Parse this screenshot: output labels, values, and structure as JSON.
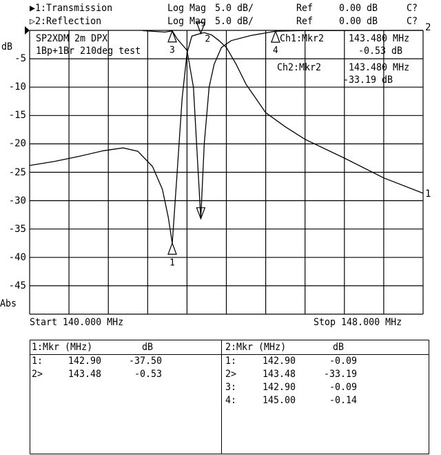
{
  "header": {
    "rows": [
      {
        "channel": "▶1:Transmission",
        "format": "Log Mag",
        "scale": "5.0 dB/",
        "ref_label": "Ref",
        "ref_value": "0.00 dB",
        "cal": "C?"
      },
      {
        "channel": "▷2:Reflection",
        "format": "Log Mag",
        "scale": "5.0 dB/",
        "ref_label": "Ref",
        "ref_value": "0.00 dB",
        "cal": "C?"
      }
    ]
  },
  "annotation": {
    "line1": "SP2XDM 2m DPX",
    "line2": "1Bp+1Br 210deg test"
  },
  "readout": {
    "ch1_label": "Ch1:Mkr2",
    "ch1_freq": "143.480 MHz",
    "ch1_value": "-0.53 dB",
    "ch2_label": "Ch2:Mkr2",
    "ch2_freq": "143.480 MHz",
    "ch2_value": "-33.19 dB"
  },
  "axis": {
    "unit": "dB",
    "bottom_label": "Abs",
    "ticks": [
      "-5",
      "-10",
      "-15",
      "-20",
      "-25",
      "-30",
      "-35",
      "-40",
      "-45"
    ],
    "start": "Start 140.000 MHz",
    "stop": "Stop 148.000 MHz"
  },
  "chart_data": {
    "type": "line",
    "xlim": [
      140,
      148
    ],
    "ylim": [
      -50,
      0
    ],
    "grid": true,
    "xlabel": "",
    "ylabel": "dB",
    "series": [
      {
        "name": "1",
        "color": "#000000",
        "points": [
          [
            140,
            -23.8
          ],
          [
            140.5,
            -23.1
          ],
          [
            141,
            -22.2
          ],
          [
            141.5,
            -21.2
          ],
          [
            141.9,
            -20.7
          ],
          [
            142.2,
            -21.3
          ],
          [
            142.5,
            -24
          ],
          [
            142.7,
            -28
          ],
          [
            142.82,
            -33
          ],
          [
            142.9,
            -37.5
          ],
          [
            143.0,
            -25
          ],
          [
            143.1,
            -12
          ],
          [
            143.2,
            -4
          ],
          [
            143.3,
            -1
          ],
          [
            143.48,
            -0.53
          ],
          [
            143.55,
            -0.4
          ],
          [
            143.7,
            -0.8
          ],
          [
            143.85,
            -1.8
          ],
          [
            144.0,
            -3
          ],
          [
            144.2,
            -6
          ],
          [
            144.4,
            -9.5
          ],
          [
            144.8,
            -14.5
          ],
          [
            145.2,
            -17
          ],
          [
            145.6,
            -19.2
          ],
          [
            146.4,
            -22.5
          ],
          [
            147.2,
            -26
          ],
          [
            148,
            -28.7
          ]
        ]
      },
      {
        "name": "2",
        "color": "#000000",
        "points": [
          [
            142.3,
            -0.05
          ],
          [
            142.75,
            -0.3
          ],
          [
            142.9,
            -0.09
          ],
          [
            143.0,
            -1.5
          ],
          [
            143.2,
            -3.5
          ],
          [
            143.33,
            -10
          ],
          [
            143.48,
            -33.19
          ],
          [
            143.55,
            -20
          ],
          [
            143.65,
            -10
          ],
          [
            143.75,
            -6
          ],
          [
            143.9,
            -3
          ],
          [
            144.1,
            -1.8
          ],
          [
            144.5,
            -0.9
          ],
          [
            145,
            -0.14
          ],
          [
            145.5,
            -0.05
          ],
          [
            148,
            0
          ]
        ]
      }
    ],
    "markers": [
      {
        "label": "1",
        "x": 142.9,
        "y": -37.5,
        "dir": "up"
      },
      {
        "label": "2",
        "x": 143.48,
        "y": -0.53,
        "dir": "down"
      },
      {
        "label": "",
        "x": 143.48,
        "y": -33.19,
        "dir": "down"
      },
      {
        "label": "3",
        "x": 142.9,
        "y": -0.09,
        "dir": "up"
      },
      {
        "label": "4",
        "x": 145.0,
        "y": -0.14,
        "dir": "up"
      }
    ]
  },
  "table": {
    "ch1": {
      "header_mkr": "1:Mkr (MHz)",
      "header_db": "dB",
      "rows": [
        [
          "1:",
          "142.90",
          "-37.50"
        ],
        [
          "2>",
          "143.48",
          "-0.53"
        ]
      ]
    },
    "ch2": {
      "header_mkr": "2:Mkr (MHz)",
      "header_db": "dB",
      "rows": [
        [
          "1:",
          "142.90",
          "-0.09"
        ],
        [
          "2>",
          "143.48",
          "-33.19"
        ],
        [
          "3:",
          "142.90",
          "-0.09"
        ],
        [
          "4:",
          "145.00",
          "-0.14"
        ]
      ]
    }
  }
}
